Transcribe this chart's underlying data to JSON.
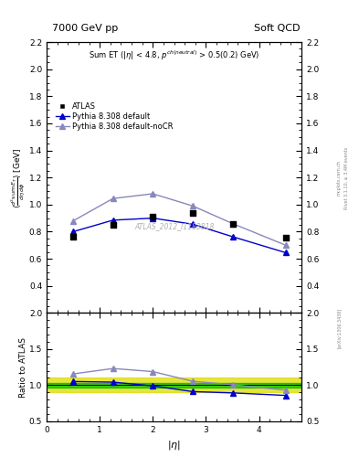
{
  "title_left": "7000 GeV pp",
  "title_right": "Soft QCD",
  "subtitle": "Sum ET (|\\eta| < 4.8, p^{ch(neutral)} > 0.5(0.2) GeV)",
  "ylabel_main": "$\\langle \\frac{d^2\\mathrm{sum}\\,E_T}{d\\eta\\,d\\phi} \\rangle$ [GeV]",
  "ylabel_ratio": "Ratio to ATLAS",
  "xlabel": "|\\eta|",
  "watermark": "ATLAS_2012_I1183818",
  "right_label_top": "Rivet 3.1.10, ≥ 3.4M events",
  "right_label_bot": "[arXiv:1306.3436]",
  "right_label_mid": "mcplots.cern.ch",
  "ylim_main": [
    0.2,
    2.2
  ],
  "ylim_ratio": [
    0.5,
    2.0
  ],
  "xlim": [
    0.0,
    4.8
  ],
  "eta_values": [
    0.5,
    1.25,
    2.0,
    2.75,
    3.5,
    4.5
  ],
  "atlas_y": [
    0.762,
    0.85,
    0.91,
    0.94,
    0.855,
    0.753
  ],
  "pythia_default_y": [
    0.8,
    0.885,
    0.9,
    0.855,
    0.763,
    0.645
  ],
  "pythia_nocr_y": [
    0.88,
    1.045,
    1.08,
    0.99,
    0.86,
    0.7
  ],
  "ratio_default_y": [
    1.05,
    1.041,
    0.989,
    0.91,
    0.892,
    0.857
  ],
  "ratio_nocr_y": [
    1.155,
    1.23,
    1.187,
    1.053,
    1.006,
    0.93
  ],
  "green_band": [
    0.97,
    1.03
  ],
  "yellow_band": [
    0.9,
    1.1
  ],
  "color_atlas": "#000000",
  "color_default": "#0000cc",
  "color_nocr": "#8888bb",
  "color_green": "#00bb00",
  "color_yellow": "#dddd00",
  "yticks_main": [
    0.4,
    0.6,
    0.8,
    1.0,
    1.2,
    1.4,
    1.6,
    1.8,
    2.0,
    2.2
  ],
  "yticks_ratio": [
    0.5,
    1.0,
    1.5,
    2.0
  ],
  "xticks": [
    0,
    1,
    2,
    3,
    4
  ]
}
